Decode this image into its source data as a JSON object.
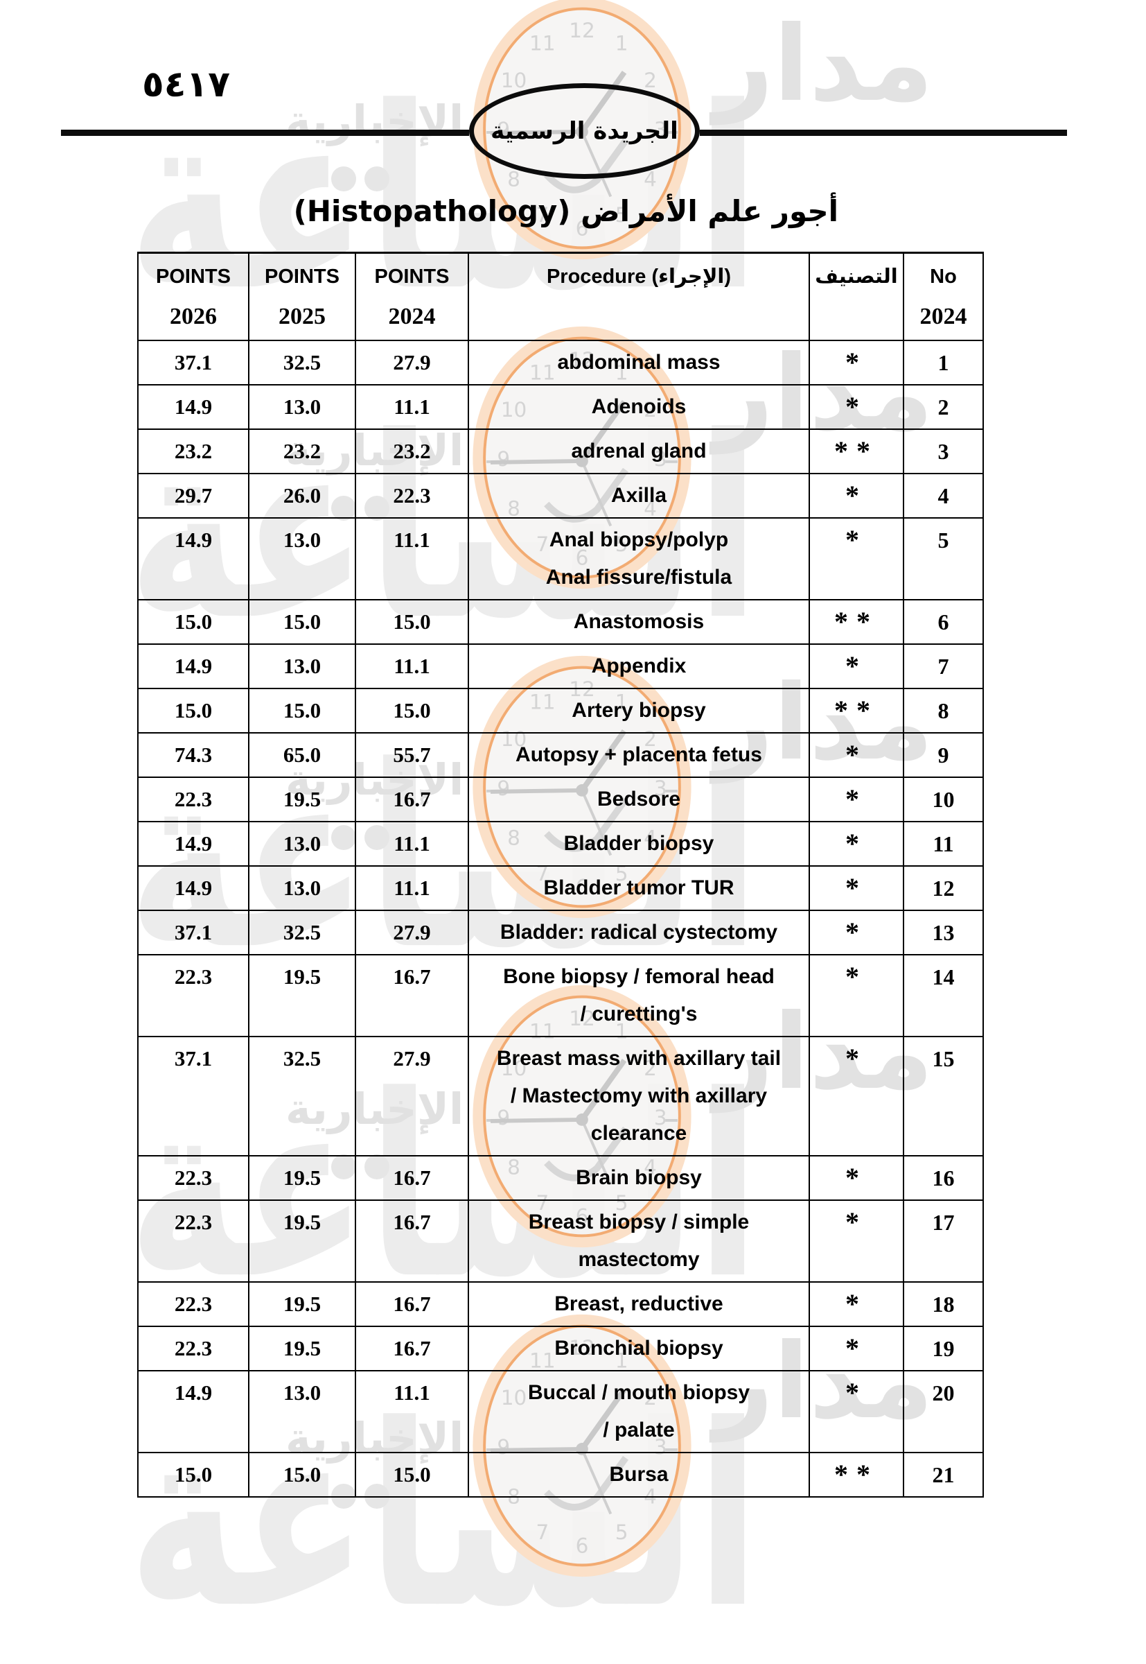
{
  "page": {
    "page_number": "٥٤١٧",
    "badge_label": "الجريدة الرسمية",
    "title": "أجور علم الأمراض (Histopathology)"
  },
  "watermark": {
    "brand_top": "مدار",
    "brand_main": "الساعة",
    "brand_sub": "الإخبارية",
    "clock": {
      "n1": "1",
      "n2": "2",
      "n3": "3",
      "n4": "4",
      "n5": "5",
      "n6": "6",
      "n7": "7",
      "n8": "8",
      "n9": "9",
      "n10": "10",
      "n11": "11",
      "n12": "12"
    }
  },
  "table": {
    "headers": [
      {
        "title": "POINTS",
        "sub": "2026"
      },
      {
        "title": "POINTS",
        "sub": "2025"
      },
      {
        "title": "POINTS",
        "sub": "2024"
      },
      {
        "title": "Procedure (الإجراء)",
        "sub": ""
      },
      {
        "title": "التصنيف",
        "sub": ""
      },
      {
        "title": "No",
        "sub": "2024"
      }
    ],
    "rows": [
      {
        "p2026": "37.1",
        "p2025": "32.5",
        "p2024": "27.9",
        "procedure": "abdominal mass",
        "classification": "*",
        "no": "1"
      },
      {
        "p2026": "14.9",
        "p2025": "13.0",
        "p2024": "11.1",
        "procedure": "Adenoids",
        "classification": "*",
        "no": "2"
      },
      {
        "p2026": "23.2",
        "p2025": "23.2",
        "p2024": "23.2",
        "procedure": "adrenal gland",
        "classification": "**",
        "no": "3"
      },
      {
        "p2026": "29.7",
        "p2025": "26.0",
        "p2024": "22.3",
        "procedure": "Axilla",
        "classification": "*",
        "no": "4"
      },
      {
        "p2026": "14.9",
        "p2025": "13.0",
        "p2024": "11.1",
        "procedure": "Anal biopsy/polyp\nAnal fissure/fistula",
        "classification": "*",
        "no": "5"
      },
      {
        "p2026": "15.0",
        "p2025": "15.0",
        "p2024": "15.0",
        "procedure": "Anastomosis",
        "classification": "**",
        "no": "6"
      },
      {
        "p2026": "14.9",
        "p2025": "13.0",
        "p2024": "11.1",
        "procedure": "Appendix",
        "classification": "*",
        "no": "7"
      },
      {
        "p2026": "15.0",
        "p2025": "15.0",
        "p2024": "15.0",
        "procedure": "Artery biopsy",
        "classification": "**",
        "no": "8"
      },
      {
        "p2026": "74.3",
        "p2025": "65.0",
        "p2024": "55.7",
        "procedure": "Autopsy + placenta fetus",
        "classification": "*",
        "no": "9"
      },
      {
        "p2026": "22.3",
        "p2025": "19.5",
        "p2024": "16.7",
        "procedure": "Bedsore",
        "classification": "*",
        "no": "10"
      },
      {
        "p2026": "14.9",
        "p2025": "13.0",
        "p2024": "11.1",
        "procedure": "Bladder biopsy",
        "classification": "*",
        "no": "11"
      },
      {
        "p2026": "14.9",
        "p2025": "13.0",
        "p2024": "11.1",
        "procedure": "Bladder tumor TUR",
        "classification": "*",
        "no": "12"
      },
      {
        "p2026": "37.1",
        "p2025": "32.5",
        "p2024": "27.9",
        "procedure": "Bladder: radical cystectomy",
        "classification": "*",
        "no": "13"
      },
      {
        "p2026": "22.3",
        "p2025": "19.5",
        "p2024": "16.7",
        "procedure": "Bone biopsy / femoral head\n/ curetting's",
        "classification": "*",
        "no": "14"
      },
      {
        "p2026": "37.1",
        "p2025": "32.5",
        "p2024": "27.9",
        "procedure": "Breast mass with axillary tail\n/ Mastectomy with axillary\nclearance",
        "classification": "*",
        "no": "15"
      },
      {
        "p2026": "22.3",
        "p2025": "19.5",
        "p2024": "16.7",
        "procedure": "Brain biopsy",
        "classification": "*",
        "no": "16"
      },
      {
        "p2026": "22.3",
        "p2025": "19.5",
        "p2024": "16.7",
        "procedure": "Breast biopsy / simple\nmastectomy",
        "classification": "*",
        "no": "17"
      },
      {
        "p2026": "22.3",
        "p2025": "19.5",
        "p2024": "16.7",
        "procedure": "Breast, reductive",
        "classification": "*",
        "no": "18"
      },
      {
        "p2026": "22.3",
        "p2025": "19.5",
        "p2024": "16.7",
        "procedure": "Bronchial biopsy",
        "classification": "*",
        "no": "19"
      },
      {
        "p2026": "14.9",
        "p2025": "13.0",
        "p2024": "11.1",
        "procedure": "Buccal / mouth biopsy\n/ palate",
        "classification": "*",
        "no": "20"
      },
      {
        "p2026": "15.0",
        "p2025": "15.0",
        "p2024": "15.0",
        "procedure": "Bursa",
        "classification": "**",
        "no": "21"
      }
    ]
  }
}
